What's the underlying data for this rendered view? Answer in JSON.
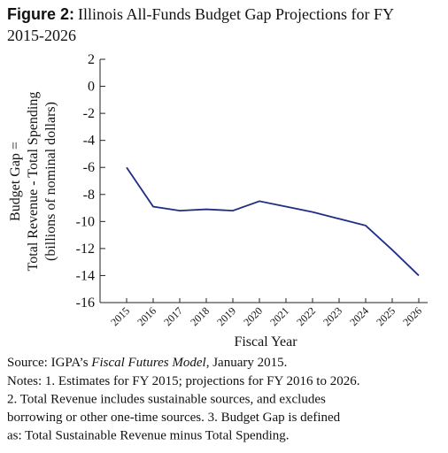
{
  "chart_data": {
    "type": "line",
    "figure_label": "Figure 2:",
    "title": "Illinois All-Funds Budget Gap Projections for FY",
    "title_line2": "2015-2026",
    "ylabel": [
      "Budget Gap =",
      "Total Revenue - Total Spending",
      "(billions of nominal dollars)"
    ],
    "xlabel": "Fiscal Year",
    "categories": [
      "2015",
      "2016",
      "2017",
      "2018",
      "2019",
      "2020",
      "2021",
      "2022",
      "2023",
      "2024",
      "2025",
      "2026"
    ],
    "series": [
      {
        "name": "Budget Gap",
        "color": "#1f2d86",
        "values": [
          -6,
          -8.9,
          -9.2,
          -9.1,
          -9.2,
          -8.5,
          -8.9,
          -9.3,
          -9.8,
          -10.3,
          -12.1,
          -14.0
        ]
      }
    ],
    "ylim": [
      -16,
      2
    ],
    "yticks": [
      {
        "value": 2,
        "label": "2"
      },
      {
        "value": 0,
        "label": "0"
      },
      {
        "value": -2,
        "label": "-2"
      },
      {
        "value": -4,
        "label": "-4"
      },
      {
        "value": -6,
        "label": "-6"
      },
      {
        "value": -8,
        "label": "-8"
      },
      {
        "value": -10,
        "label": "-10"
      },
      {
        "value": -12,
        "label": "-12"
      },
      {
        "value": -14,
        "label": "-14"
      },
      {
        "value": -16,
        "label": "-16"
      }
    ],
    "source": [
      "Source: IGPA’s ",
      "Fiscal Futures Model",
      ", January 2015."
    ],
    "notes": [
      "Notes: 1. Estimates for FY 2015; projections for FY 2016 to 2026.",
      "2. Total Revenue includes sustainable sources, and excludes",
      "borrowing or other one-time sources. 3. Budget Gap is defined",
      "as: Total Sustainable Revenue minus Total Spending."
    ]
  }
}
